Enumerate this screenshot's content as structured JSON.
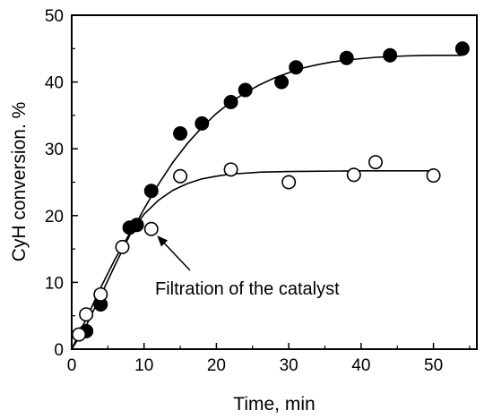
{
  "chart_data": {
    "type": "scatter",
    "title": "",
    "xlabel": "Time, min",
    "ylabel": "CyH conversion. %",
    "xlim": [
      0,
      56
    ],
    "ylim": [
      0,
      50
    ],
    "xticks": [
      0,
      10,
      20,
      30,
      40,
      50
    ],
    "yticks": [
      0,
      10,
      20,
      30,
      40,
      50
    ],
    "grid": false,
    "legend": "none",
    "series": [
      {
        "marker": "filled-circle",
        "color": "#000000",
        "points": [
          [
            2,
            2.7
          ],
          [
            4,
            6.7
          ],
          [
            8,
            18.2
          ],
          [
            9,
            18.6
          ],
          [
            11,
            23.7
          ],
          [
            15,
            32.3
          ],
          [
            18,
            33.8
          ],
          [
            22,
            37
          ],
          [
            24,
            38.8
          ],
          [
            29,
            40
          ],
          [
            31,
            42.2
          ],
          [
            38,
            43.6
          ],
          [
            44,
            44
          ],
          [
            54,
            45
          ]
        ],
        "fit": [
          [
            0,
            0
          ],
          [
            2,
            3.5
          ],
          [
            4,
            8
          ],
          [
            6,
            12.6
          ],
          [
            8,
            17
          ],
          [
            10,
            21
          ],
          [
            12,
            24.7
          ],
          [
            14,
            28
          ],
          [
            16,
            30.8
          ],
          [
            18,
            33.2
          ],
          [
            20,
            35.3
          ],
          [
            22,
            37
          ],
          [
            24,
            38.4
          ],
          [
            26,
            39.6
          ],
          [
            28,
            40.6
          ],
          [
            30,
            41.4
          ],
          [
            32,
            42.1
          ],
          [
            34,
            42.6
          ],
          [
            36,
            43
          ],
          [
            38,
            43.3
          ],
          [
            40,
            43.5
          ],
          [
            42,
            43.7
          ],
          [
            44,
            43.8
          ],
          [
            46,
            43.9
          ],
          [
            48,
            43.95
          ],
          [
            50,
            44
          ],
          [
            54,
            44
          ]
        ]
      },
      {
        "marker": "open-circle",
        "color": "#000000",
        "points": [
          [
            1,
            2.2
          ],
          [
            2,
            5.2
          ],
          [
            4,
            8.2
          ],
          [
            7,
            15.3
          ],
          [
            11,
            18
          ],
          [
            15,
            25.9
          ],
          [
            22,
            26.9
          ],
          [
            30,
            25
          ],
          [
            39,
            26.1
          ],
          [
            42,
            28
          ],
          [
            50,
            26
          ]
        ],
        "fit": [
          [
            0,
            0
          ],
          [
            2,
            4.5
          ],
          [
            4,
            9.2
          ],
          [
            6,
            13.5
          ],
          [
            8,
            17.3
          ],
          [
            10,
            20.2
          ],
          [
            12,
            22.3
          ],
          [
            14,
            23.8
          ],
          [
            16,
            24.8
          ],
          [
            18,
            25.5
          ],
          [
            20,
            25.9
          ],
          [
            22,
            26.2
          ],
          [
            26,
            26.5
          ],
          [
            30,
            26.6
          ],
          [
            40,
            26.7
          ],
          [
            50,
            26.7
          ]
        ]
      }
    ],
    "annotations": [
      {
        "text": "Filtration of the catalyst",
        "arrow_to": [
          11.8,
          17
        ]
      }
    ]
  }
}
